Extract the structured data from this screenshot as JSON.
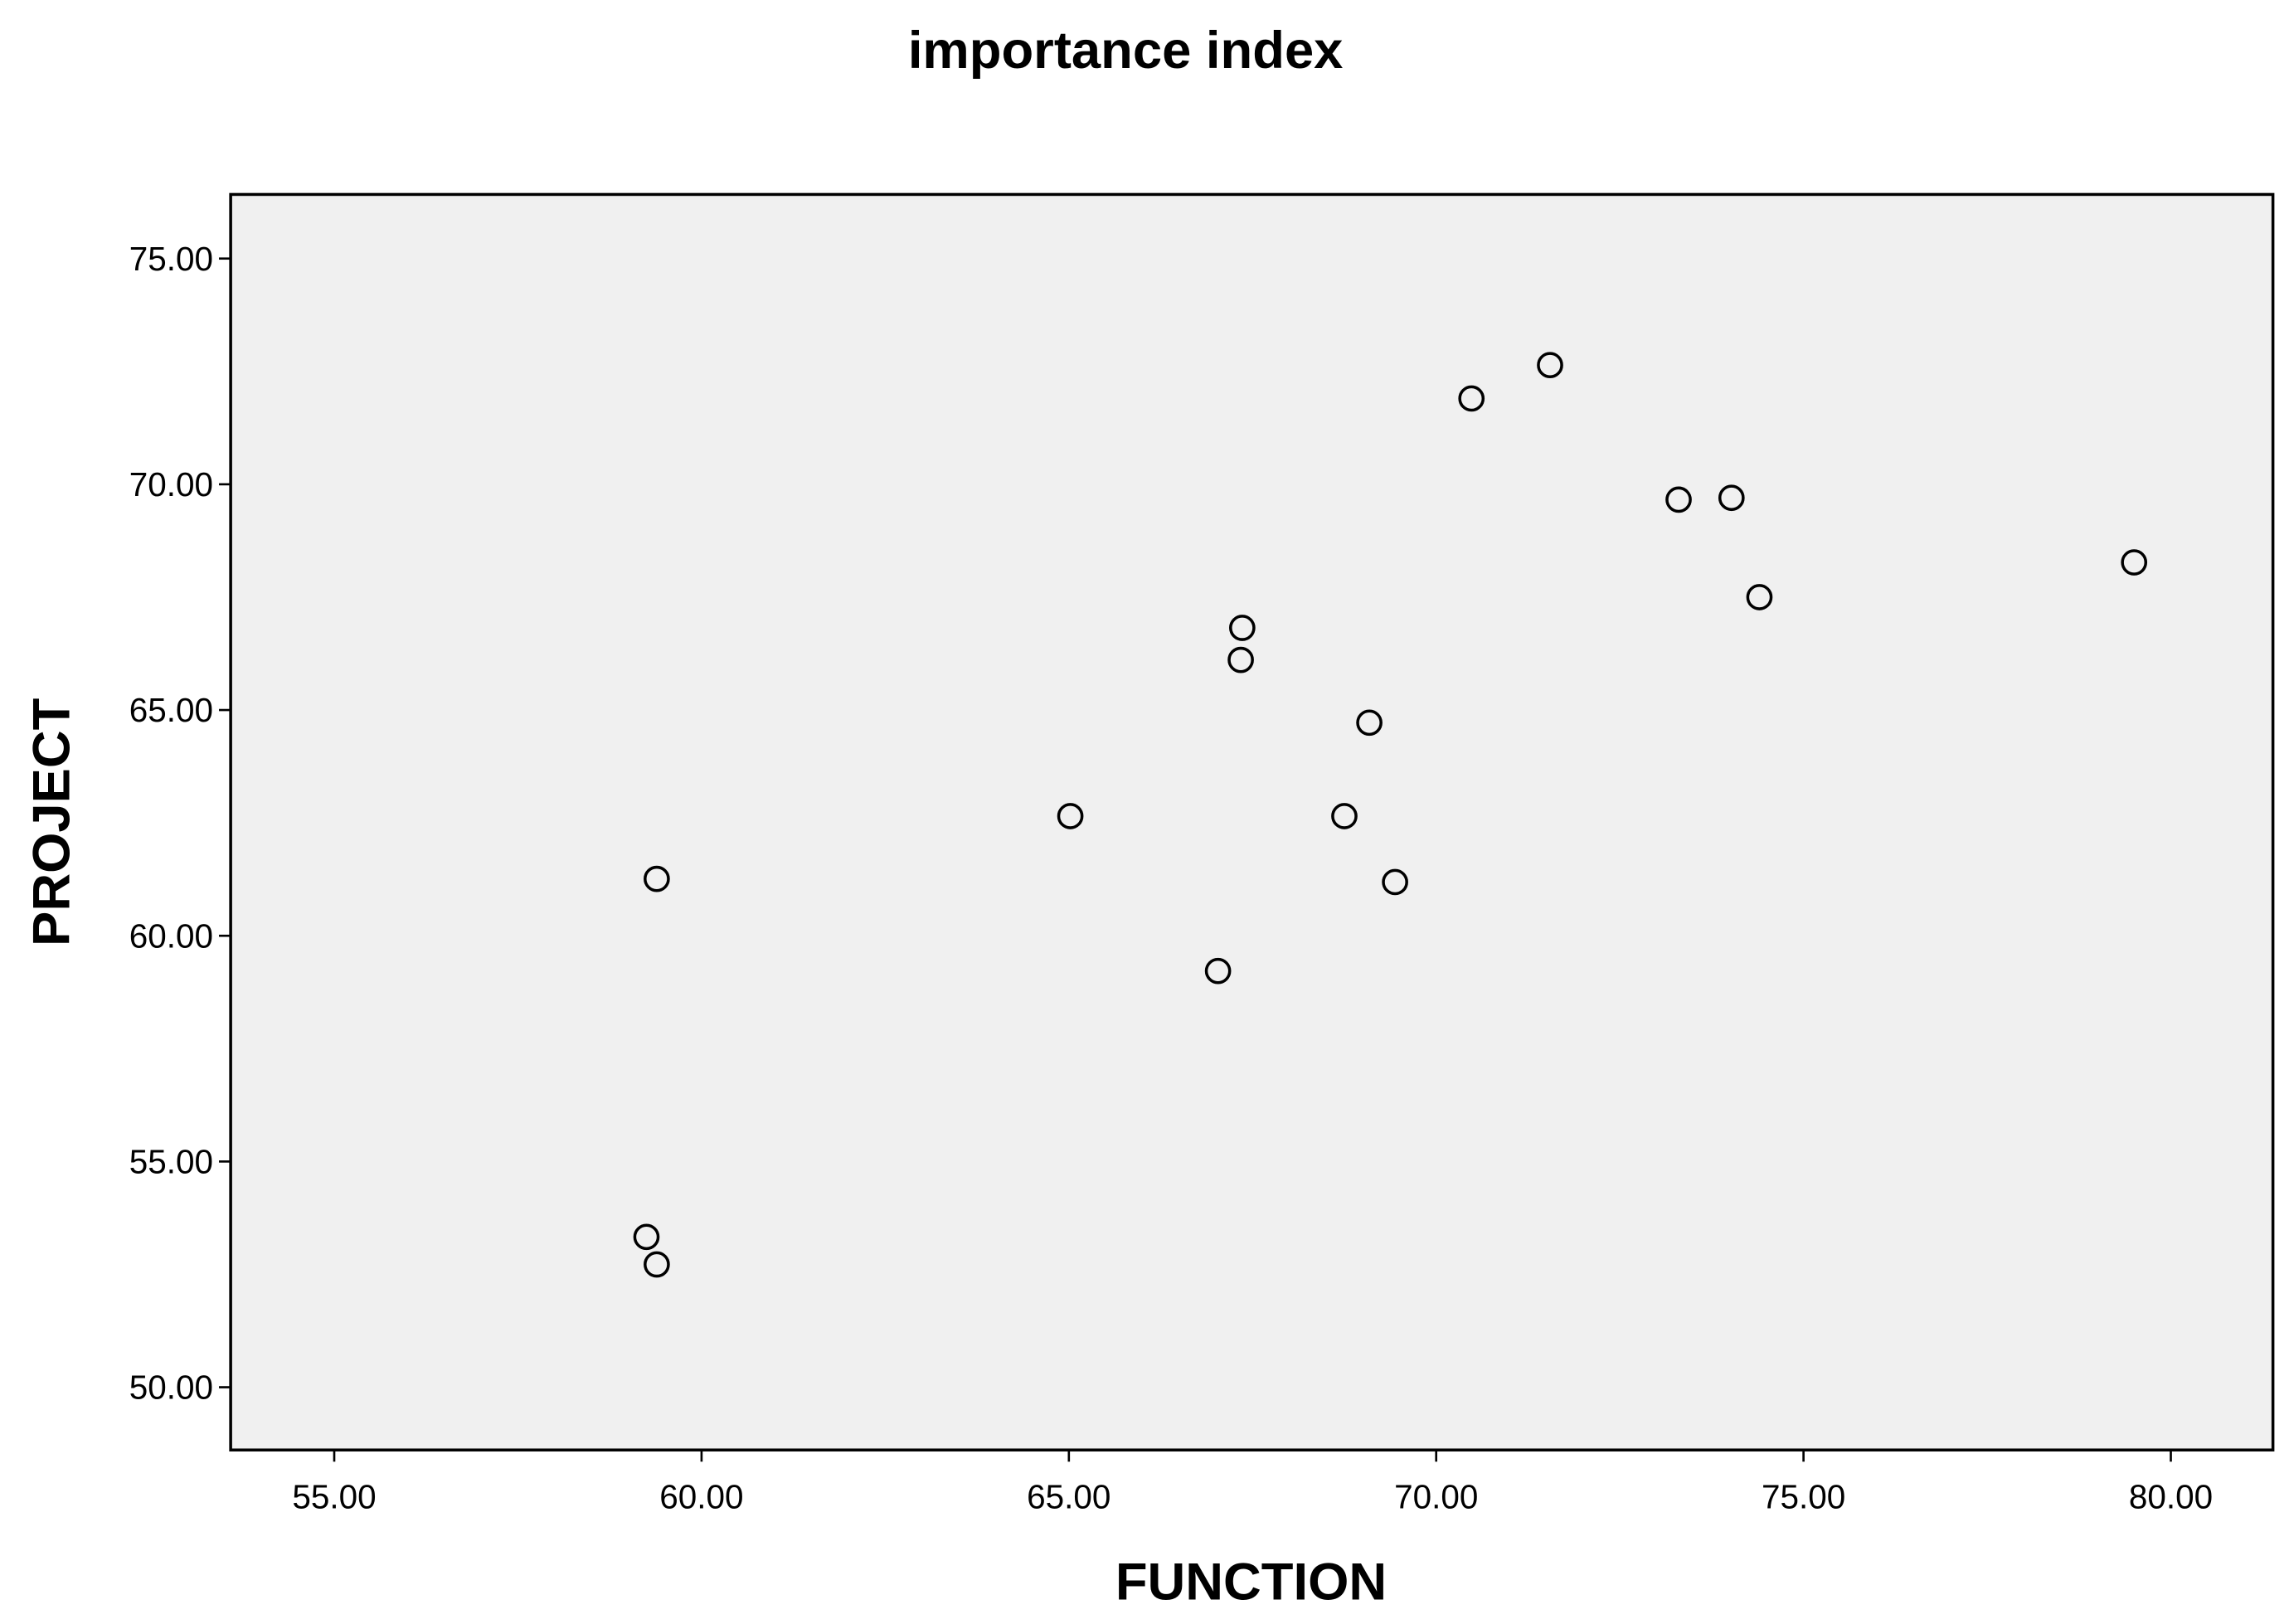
{
  "chart_data": {
    "type": "scatter",
    "title": "importance index",
    "x_label": "FUNCTION",
    "y_label": "PROJECT",
    "x": [
      70.48,
      71.55,
      73.3,
      74.02,
      79.5,
      74.4,
      67.36,
      67.34,
      69.09,
      65.02,
      68.75,
      59.39,
      69.44,
      67.03,
      59.25,
      59.39
    ],
    "values": [
      71.9,
      72.64,
      69.66,
      69.7,
      68.27,
      67.5,
      66.82,
      66.11,
      64.72,
      62.65,
      62.65,
      61.26,
      61.19,
      59.22,
      53.33,
      52.72
    ],
    "color": "#000000",
    "xlim": [
      53.59,
      81.39
    ],
    "ylim": [
      48.61,
      76.42
    ],
    "xticks": [
      {
        "value": 55,
        "label": "55.00"
      },
      {
        "value": 60,
        "label": "60.00"
      },
      {
        "value": 65,
        "label": "65.00"
      },
      {
        "value": 70,
        "label": "70.00"
      },
      {
        "value": 75,
        "label": "75.00"
      },
      {
        "value": 80,
        "label": "80.00"
      }
    ],
    "yticks": [
      {
        "value": 50,
        "label": "50.00"
      },
      {
        "value": 55,
        "label": "55.00"
      },
      {
        "value": 60,
        "label": "60.00"
      },
      {
        "value": 65,
        "label": "65.00"
      },
      {
        "value": 70,
        "label": "70.00"
      },
      {
        "value": 75,
        "label": "75.00"
      }
    ],
    "grid": false
  }
}
